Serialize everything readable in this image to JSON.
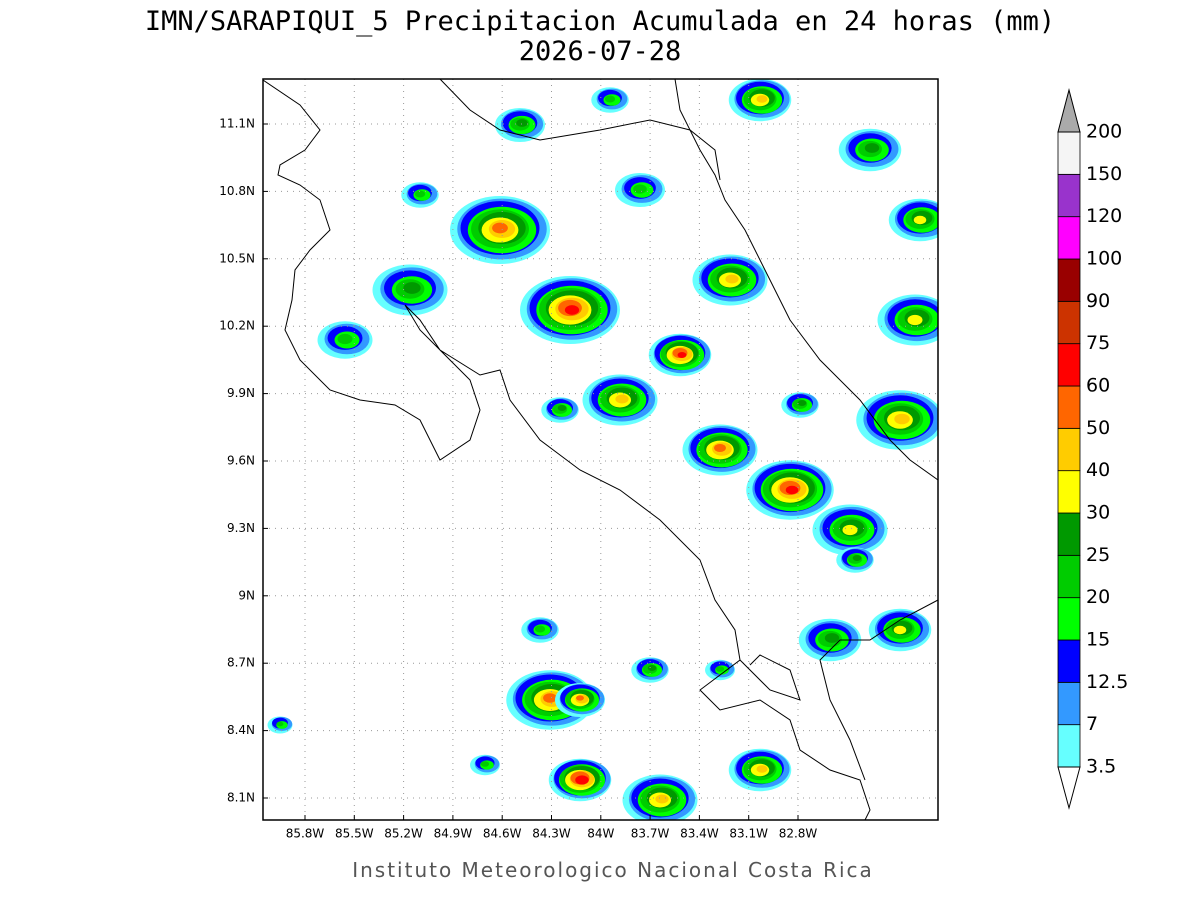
{
  "header": {
    "title": "IMN/SARAPIQUI_5 Precipitacion Acumulada en 24 horas (mm)",
    "date": "2026-07-28"
  },
  "map": {
    "lon_labels": [
      "85.8W",
      "85.5W",
      "85.2W",
      "84.9W",
      "84.6W",
      "84.3W",
      "84W",
      "83.7W",
      "83.4W",
      "83.1W",
      "82.8W"
    ],
    "lat_labels": [
      "11.1N",
      "10.8N",
      "10.5N",
      "10.2N",
      "9.9N",
      "9.6N",
      "9.3N",
      "9N",
      "8.7N",
      "8.4N",
      "8.1N"
    ]
  },
  "legend": {
    "labels": [
      "3.5",
      "7",
      "12.5",
      "15",
      "20",
      "25",
      "30",
      "40",
      "50",
      "60",
      "75",
      "90",
      "100",
      "120",
      "150",
      "200"
    ],
    "colors": [
      "#66ffff",
      "#3399ff",
      "#0000ff",
      "#00ff00",
      "#00cc00",
      "#009900",
      "#ffff00",
      "#ffcc00",
      "#ff6600",
      "#ff0000",
      "#cc3300",
      "#990000",
      "#ff00ff",
      "#9933cc",
      "#f5f5f5"
    ],
    "over_color": "#aaaaaa",
    "under_color": "#ffffff"
  },
  "footer": "Instituto Meteorologico Nacional Costa Rica"
}
